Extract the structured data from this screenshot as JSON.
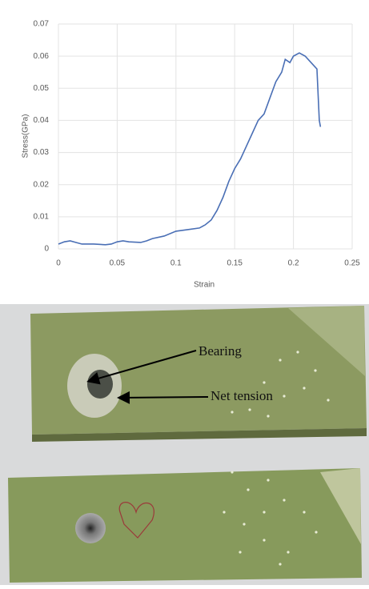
{
  "chart_data": {
    "type": "line",
    "xlabel": "Strain",
    "ylabel": "Stress(GPa)",
    "x": [
      0,
      0.005,
      0.01,
      0.015,
      0.02,
      0.03,
      0.04,
      0.045,
      0.05,
      0.055,
      0.06,
      0.07,
      0.075,
      0.08,
      0.09,
      0.1,
      0.11,
      0.12,
      0.125,
      0.13,
      0.135,
      0.14,
      0.145,
      0.15,
      0.155,
      0.16,
      0.165,
      0.17,
      0.175,
      0.18,
      0.185,
      0.19,
      0.193,
      0.197,
      0.2,
      0.205,
      0.21,
      0.215,
      0.22,
      0.222,
      0.223
    ],
    "values": [
      0.0015,
      0.0022,
      0.0025,
      0.002,
      0.0015,
      0.0015,
      0.0013,
      0.0015,
      0.0022,
      0.0025,
      0.0022,
      0.002,
      0.0025,
      0.0032,
      0.004,
      0.0055,
      0.006,
      0.0065,
      0.0075,
      0.009,
      0.012,
      0.016,
      0.021,
      0.025,
      0.028,
      0.032,
      0.036,
      0.04,
      0.042,
      0.047,
      0.052,
      0.055,
      0.059,
      0.058,
      0.06,
      0.061,
      0.06,
      0.058,
      0.056,
      0.04,
      0.038
    ],
    "color": "#4a6fb5",
    "xlim": [
      0,
      0.25
    ],
    "xticks": [
      0,
      0.05,
      0.1,
      0.15,
      0.2,
      0.25
    ],
    "ylim": [
      0,
      0.07
    ],
    "yticks": [
      0,
      0.01,
      0.02,
      0.03,
      0.04,
      0.05,
      0.06,
      0.07
    ],
    "grid": true
  },
  "photo": {
    "annotations": [
      "Bearing",
      "Net tension"
    ]
  }
}
